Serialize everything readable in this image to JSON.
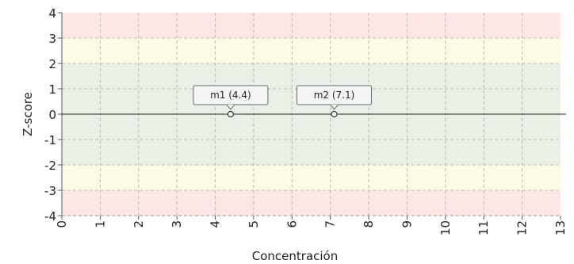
{
  "chart_data": {
    "type": "scatter",
    "title": "",
    "xlabel": "Concentración",
    "ylabel": "Z-score",
    "xlim": [
      0,
      13
    ],
    "ylim": [
      -4,
      4
    ],
    "x_ticks": [
      "0",
      "1",
      "2",
      "3",
      "4",
      "5",
      "6",
      "7",
      "8",
      "9",
      "10",
      "11",
      "12",
      "13"
    ],
    "y_ticks": [
      "4",
      "3",
      "2",
      "1",
      "0",
      "-1",
      "-2",
      "-3",
      "-4"
    ],
    "grid": true,
    "bands": [
      {
        "from": 3,
        "to": 4,
        "color": "#fde6e6"
      },
      {
        "from": 2,
        "to": 3,
        "color": "#fdfbe3"
      },
      {
        "from": -2,
        "to": 2,
        "color": "#e9f1e7"
      },
      {
        "from": -3,
        "to": -2,
        "color": "#fdfbe3"
      },
      {
        "from": -4,
        "to": -3,
        "color": "#fde6e6"
      }
    ],
    "points": [
      {
        "label": "m1 (4.4)",
        "x": 4.4,
        "y": 0
      },
      {
        "label": "m2 (7.1)",
        "x": 7.1,
        "y": 0
      }
    ]
  }
}
